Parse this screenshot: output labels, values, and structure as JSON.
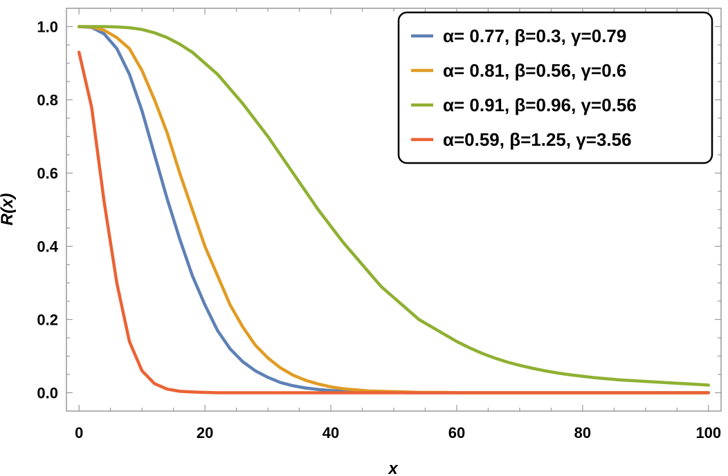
{
  "chart_data": {
    "type": "line",
    "xlabel": "x",
    "ylabel": "R(x)",
    "xlim": [
      -2,
      102
    ],
    "ylim": [
      -0.05,
      1.05
    ],
    "xticks": [
      0,
      20,
      40,
      60,
      80,
      100
    ],
    "xtick_labels": [
      "0",
      "20",
      "40",
      "60",
      "80",
      "100"
    ],
    "yticks": [
      0.0,
      0.2,
      0.4,
      0.6,
      0.8,
      1.0
    ],
    "ytick_labels": [
      "0.0",
      "0.2",
      "0.4",
      "0.6",
      "0.8",
      "1.0"
    ],
    "grid": false,
    "legend_position": "top-right",
    "x": [
      0,
      2,
      4,
      6,
      8,
      10,
      12,
      14,
      16,
      18,
      20,
      22,
      24,
      26,
      28,
      30,
      32,
      34,
      36,
      38,
      40,
      42,
      44,
      46,
      48,
      50,
      52,
      54,
      56,
      58,
      60,
      62,
      64,
      66,
      68,
      70,
      72,
      74,
      76,
      78,
      80,
      82,
      84,
      86,
      88,
      90,
      92,
      94,
      96,
      98,
      100
    ],
    "series": [
      {
        "name": "α= 0.77, β=0.3, γ=0.79",
        "color": "#5e81b5",
        "values": [
          1.0,
          0.998,
          0.98,
          0.94,
          0.87,
          0.77,
          0.65,
          0.53,
          0.42,
          0.32,
          0.24,
          0.17,
          0.12,
          0.085,
          0.06,
          0.042,
          0.028,
          0.019,
          0.013,
          0.009,
          0.006,
          0.004,
          0.002,
          0.002,
          0.001,
          0.001,
          0.0,
          0.0,
          0.0,
          0.0,
          0.0,
          0.0,
          0.0,
          0.0,
          0.0,
          0.0,
          0.0,
          0.0,
          0.0,
          0.0,
          0.0,
          0.0,
          0.0,
          0.0,
          0.0,
          0.0,
          0.0,
          0.0,
          0.0,
          0.0,
          0.0
        ]
      },
      {
        "name": "α= 0.81, β=0.56, γ=0.6",
        "color": "#e19c24",
        "values": [
          1.0,
          0.999,
          0.99,
          0.97,
          0.94,
          0.88,
          0.8,
          0.71,
          0.6,
          0.5,
          0.4,
          0.32,
          0.24,
          0.18,
          0.13,
          0.095,
          0.068,
          0.048,
          0.034,
          0.024,
          0.016,
          0.011,
          0.008,
          0.005,
          0.004,
          0.003,
          0.002,
          0.001,
          0.001,
          0.001,
          0.0,
          0.0,
          0.0,
          0.0,
          0.0,
          0.0,
          0.0,
          0.0,
          0.0,
          0.0,
          0.0,
          0.0,
          0.0,
          0.0,
          0.0,
          0.0,
          0.0,
          0.0,
          0.0,
          0.0,
          0.0
        ]
      },
      {
        "name": "α= 0.91, β=0.96, γ=0.56",
        "color": "#8fb032",
        "values": [
          1.0,
          1.0,
          1.0,
          0.999,
          0.997,
          0.992,
          0.983,
          0.97,
          0.952,
          0.93,
          0.9,
          0.87,
          0.83,
          0.79,
          0.745,
          0.7,
          0.65,
          0.6,
          0.55,
          0.5,
          0.455,
          0.41,
          0.37,
          0.33,
          0.29,
          0.26,
          0.23,
          0.2,
          0.18,
          0.16,
          0.14,
          0.123,
          0.108,
          0.095,
          0.084,
          0.075,
          0.067,
          0.06,
          0.054,
          0.049,
          0.045,
          0.041,
          0.038,
          0.035,
          0.033,
          0.031,
          0.029,
          0.027,
          0.025,
          0.023,
          0.021
        ]
      },
      {
        "name": "α=0.59, β=1.25, γ=3.56",
        "color": "#eb6235",
        "values": [
          0.93,
          0.78,
          0.52,
          0.3,
          0.14,
          0.06,
          0.025,
          0.01,
          0.004,
          0.002,
          0.001,
          0.0,
          0.0,
          0.0,
          0.0,
          0.0,
          0.0,
          0.0,
          0.0,
          0.0,
          0.0,
          0.0,
          0.0,
          0.0,
          0.0,
          0.0,
          0.0,
          0.0,
          0.0,
          0.0,
          0.0,
          0.0,
          0.0,
          0.0,
          0.0,
          0.0,
          0.0,
          0.0,
          0.0,
          0.0,
          0.0,
          0.0,
          0.0,
          0.0,
          0.0,
          0.0,
          0.0,
          0.0,
          0.0,
          0.0,
          0.0
        ]
      }
    ]
  }
}
